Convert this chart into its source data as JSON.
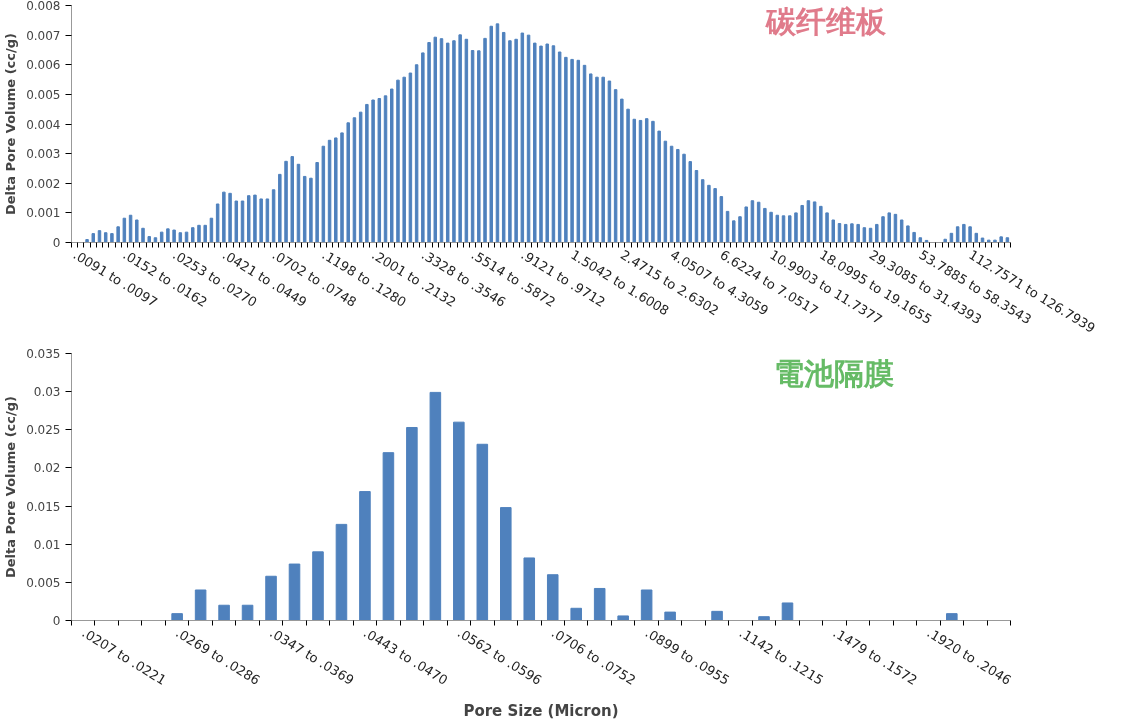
{
  "chart_data": [
    {
      "type": "bar",
      "title": "碳纤维板",
      "ylabel": "Delta Pore Volume (cc/g)",
      "color": "#4f81bd",
      "ylim": [
        0,
        0.008
      ],
      "yticks": [
        0,
        0.001,
        0.002,
        0.003,
        0.004,
        0.005,
        0.006,
        0.007,
        0.008
      ],
      "categories": [
        ".0091 to .0097",
        null,
        null,
        null,
        null,
        null,
        null,
        null,
        ".0152 to .0162",
        null,
        null,
        null,
        null,
        null,
        null,
        null,
        ".0253 to .0270",
        null,
        null,
        null,
        null,
        null,
        null,
        null,
        ".0421 to .0449",
        null,
        null,
        null,
        null,
        null,
        null,
        null,
        ".0702 to .0748",
        null,
        null,
        null,
        null,
        null,
        null,
        null,
        ".1198 to .1280",
        null,
        null,
        null,
        null,
        null,
        null,
        null,
        ".2001 to .2132",
        null,
        null,
        null,
        null,
        null,
        null,
        null,
        ".3328 to .3546",
        null,
        null,
        null,
        null,
        null,
        null,
        null,
        ".5514 to .5872",
        null,
        null,
        null,
        null,
        null,
        null,
        null,
        ".9121 to .9712",
        null,
        null,
        null,
        null,
        null,
        null,
        null,
        "1.5042 to 1.6008",
        null,
        null,
        null,
        null,
        null,
        null,
        null,
        "2.4715 to 2.6302",
        null,
        null,
        null,
        null,
        null,
        null,
        null,
        "4.0507 to 4.3059",
        null,
        null,
        null,
        null,
        null,
        null,
        null,
        "6.6224 to 7.0517",
        null,
        null,
        null,
        null,
        null,
        null,
        null,
        "10.9903 to 11.7377",
        null,
        null,
        null,
        null,
        null,
        null,
        null,
        "18.0995 to 19.1655",
        null,
        null,
        null,
        null,
        null,
        null,
        null,
        "29.3085 to 31.4393",
        null,
        null,
        null,
        null,
        null,
        null,
        null,
        "53.7885 to 58.3543",
        null,
        null,
        null,
        null,
        null,
        null,
        null,
        "112.7571 to 126.7939",
        null,
        null,
        null,
        null,
        null,
        null
      ],
      "values": [
        0,
        0,
        0.0001,
        0.0003,
        0.0004,
        0.00033,
        0.0003,
        0.00053,
        0.00082,
        0.00092,
        0.00076,
        0.00048,
        0.0002,
        0.00016,
        0.00035,
        0.00046,
        0.00042,
        0.00033,
        0.00035,
        0.0005,
        0.00058,
        0.00058,
        0.00082,
        0.0013,
        0.0017,
        0.00166,
        0.0014,
        0.0014,
        0.00158,
        0.0016,
        0.00147,
        0.00147,
        0.00178,
        0.0023,
        0.00274,
        0.0029,
        0.00264,
        0.00223,
        0.00217,
        0.0027,
        0.00325,
        0.00345,
        0.00353,
        0.0037,
        0.00404,
        0.00421,
        0.0044,
        0.00466,
        0.00481,
        0.00486,
        0.00495,
        0.00518,
        0.00548,
        0.00558,
        0.00572,
        0.006,
        0.0064,
        0.00675,
        0.00693,
        0.00688,
        0.00673,
        0.00681,
        0.00701,
        0.00686,
        0.00648,
        0.00647,
        0.00689,
        0.0073,
        0.00738,
        0.00709,
        0.00681,
        0.00686,
        0.00707,
        0.007,
        0.00673,
        0.00663,
        0.0067,
        0.00664,
        0.00643,
        0.00625,
        0.00618,
        0.00615,
        0.00598,
        0.00569,
        0.00558,
        0.00558,
        0.00545,
        0.00516,
        0.00484,
        0.0045,
        0.00416,
        0.00412,
        0.00418,
        0.00409,
        0.00376,
        0.00342,
        0.00325,
        0.00314,
        0.00298,
        0.00273,
        0.00243,
        0.00212,
        0.00193,
        0.00182,
        0.00155,
        0.00105,
        0.00073,
        0.00087,
        0.0012,
        0.00141,
        0.00136,
        0.00115,
        0.00102,
        0.00092,
        0.0009,
        0.0009,
        0.001,
        0.00125,
        0.00141,
        0.00137,
        0.00122,
        0.001,
        0.00076,
        0.00064,
        0.00061,
        0.00063,
        0.00061,
        0.0005,
        0.00048,
        0.00061,
        0.00087,
        0.001,
        0.00095,
        0.00076,
        0.00056,
        0.00034,
        0.00016,
        7e-05,
        0,
        0,
        0.00011,
        0.00031,
        0.00053,
        0.00061,
        0.00053,
        0.00031,
        0.00015,
        8e-05,
        8e-05,
        0.00019,
        0.00016
      ]
    },
    {
      "type": "bar",
      "title": "電池隔膜",
      "ylabel": "Delta Pore Volume (cc/g)",
      "xlabel": "Pore Size (Micron)",
      "color": "#4f81bd",
      "ylim": [
        0,
        0.035
      ],
      "yticks": [
        0,
        0.005,
        0.01,
        0.015,
        0.02,
        0.025,
        0.03,
        0.035
      ],
      "categories": [
        ".0207 to .0221",
        null,
        null,
        null,
        ".0269 to .0286",
        null,
        null,
        null,
        ".0347 to .0369",
        null,
        null,
        null,
        ".0443 to .0470",
        null,
        null,
        null,
        ".0562 to .0596",
        null,
        null,
        null,
        ".0706 to .0752",
        null,
        null,
        null,
        ".0899 to .0955",
        null,
        null,
        null,
        ".1142 to .1215",
        null,
        null,
        null,
        ".1479 to .1572",
        null,
        null,
        null,
        ".1920 to .2046",
        null,
        null,
        null
      ],
      "values": [
        0,
        0,
        0,
        0,
        0.0009,
        0.004,
        0.002,
        0.002,
        0.0058,
        0.0074,
        0.009,
        0.0126,
        0.0169,
        0.022,
        0.0253,
        0.0299,
        0.026,
        0.0231,
        0.0148,
        0.0082,
        0.006,
        0.0016,
        0.0042,
        0.0006,
        0.004,
        0.0011,
        0,
        0.0012,
        0,
        0.0005,
        0.0023,
        0,
        0,
        0,
        0,
        0,
        0,
        0.0009,
        0,
        0
      ]
    }
  ]
}
